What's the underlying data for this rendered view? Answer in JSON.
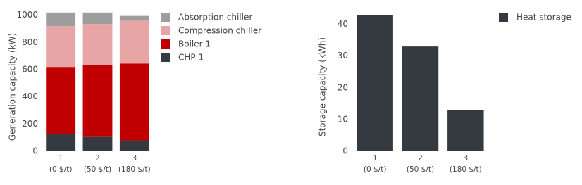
{
  "chart_data": [
    {
      "type": "stacked_bar",
      "ylabel": "Generation capacity (kW)",
      "categories": [
        [
          "1",
          "(0 $/t)"
        ],
        [
          "2",
          "(50 $/t)"
        ],
        [
          "3",
          "(180 $/t)"
        ]
      ],
      "series": [
        {
          "name": "CHP 1",
          "color": "#343a40",
          "values": [
            125,
            105,
            80
          ]
        },
        {
          "name": "Boiler 1",
          "color": "#c00000",
          "values": [
            495,
            530,
            565
          ]
        },
        {
          "name": "Compression chiller",
          "color": "#e8a5a5",
          "values": [
            300,
            300,
            315
          ]
        },
        {
          "name": "Absorption chiller",
          "color": "#9e9e9e",
          "values": [
            100,
            85,
            35
          ]
        }
      ],
      "ylim": [
        0,
        1050
      ],
      "yticks": [
        0,
        200,
        400,
        600,
        800,
        1000
      ]
    },
    {
      "type": "bar",
      "ylabel": "Storage capacity (kWh)",
      "categories": [
        [
          "1",
          "(0 $/t)"
        ],
        [
          "2",
          "(50 $/t)"
        ],
        [
          "3",
          "(180 $/t)"
        ]
      ],
      "series": [
        {
          "name": "Heat storage",
          "color": "#343a40",
          "values": [
            43,
            33,
            13
          ]
        }
      ],
      "ylim": [
        0,
        45
      ],
      "yticks": [
        0,
        10,
        20,
        30,
        40
      ]
    }
  ]
}
